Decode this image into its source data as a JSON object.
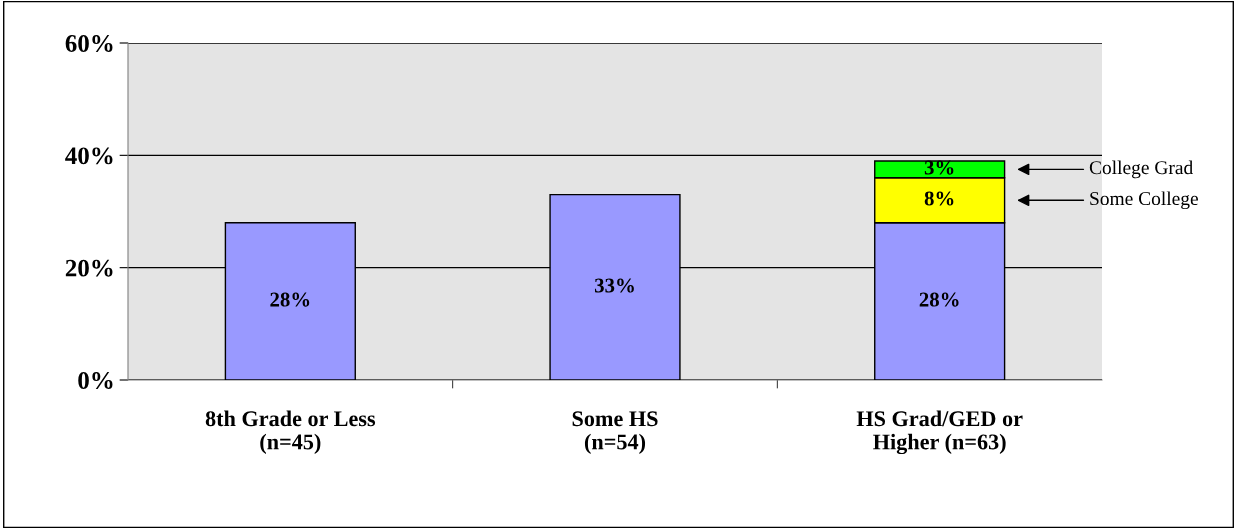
{
  "chart_data": {
    "type": "bar",
    "stacked": true,
    "categories": [
      "8th Grade or Less\n(n=45)",
      "Some HS\n(n=54)",
      "HS Grad/GED or\nHigher (n=63)"
    ],
    "series": [
      {
        "color": "#9999ff",
        "values": [
          28,
          33,
          28
        ],
        "value_labels": [
          "28%",
          "33%",
          "28%"
        ]
      },
      {
        "name": "Some College",
        "color": "#ffff00",
        "values": [
          null,
          null,
          8
        ],
        "value_labels": [
          null,
          null,
          "8%"
        ]
      },
      {
        "name": "College Grad",
        "color": "#00ff00",
        "values": [
          null,
          null,
          3
        ],
        "value_labels": [
          null,
          null,
          "3%"
        ]
      }
    ],
    "ylim": [
      0,
      60
    ],
    "yticks": [
      {
        "value": 0,
        "label": "0%"
      },
      {
        "value": 20,
        "label": "20%"
      },
      {
        "value": 40,
        "label": "40%"
      },
      {
        "value": 60,
        "label": "60%"
      }
    ],
    "grid": "y",
    "legend": "right"
  }
}
